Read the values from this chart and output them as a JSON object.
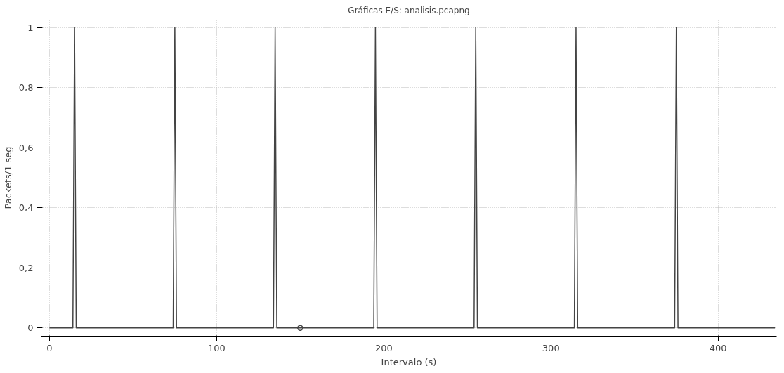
{
  "chart_data": {
    "type": "line",
    "title": "Gráficas E/S: analisis.pcapng",
    "xlabel": "Intervalo (s)",
    "ylabel": "Packets/1 seg",
    "xlim": [
      -5,
      435
    ],
    "ylim": [
      -0.03,
      1.03
    ],
    "xticks": [
      0,
      100,
      200,
      300,
      400
    ],
    "yticks": [
      {
        "value": 0,
        "label": "0"
      },
      {
        "value": 0.2,
        "label": "0,2"
      },
      {
        "value": 0.4,
        "label": "0,4"
      },
      {
        "value": 0.6,
        "label": "0,6"
      },
      {
        "value": 0.8,
        "label": "0,8"
      },
      {
        "value": 1,
        "label": "1"
      }
    ],
    "grid": true,
    "line_style": "solid",
    "series": [
      {
        "color": "#444444",
        "x": [
          0,
          14,
          15,
          16,
          74,
          75,
          76,
          134,
          135,
          136,
          194,
          195,
          196,
          254,
          255,
          256,
          314,
          315,
          316,
          374,
          375,
          376,
          434
        ],
        "values": [
          0,
          0,
          1,
          0,
          0,
          1,
          0,
          0,
          1,
          0,
          0,
          1,
          0,
          0,
          1,
          0,
          0,
          1,
          0,
          0,
          1,
          0,
          0
        ]
      },
      {
        "type": "scatter",
        "marker": "circle",
        "color": "#444444",
        "x": [
          150
        ],
        "values": [
          0
        ]
      }
    ]
  }
}
